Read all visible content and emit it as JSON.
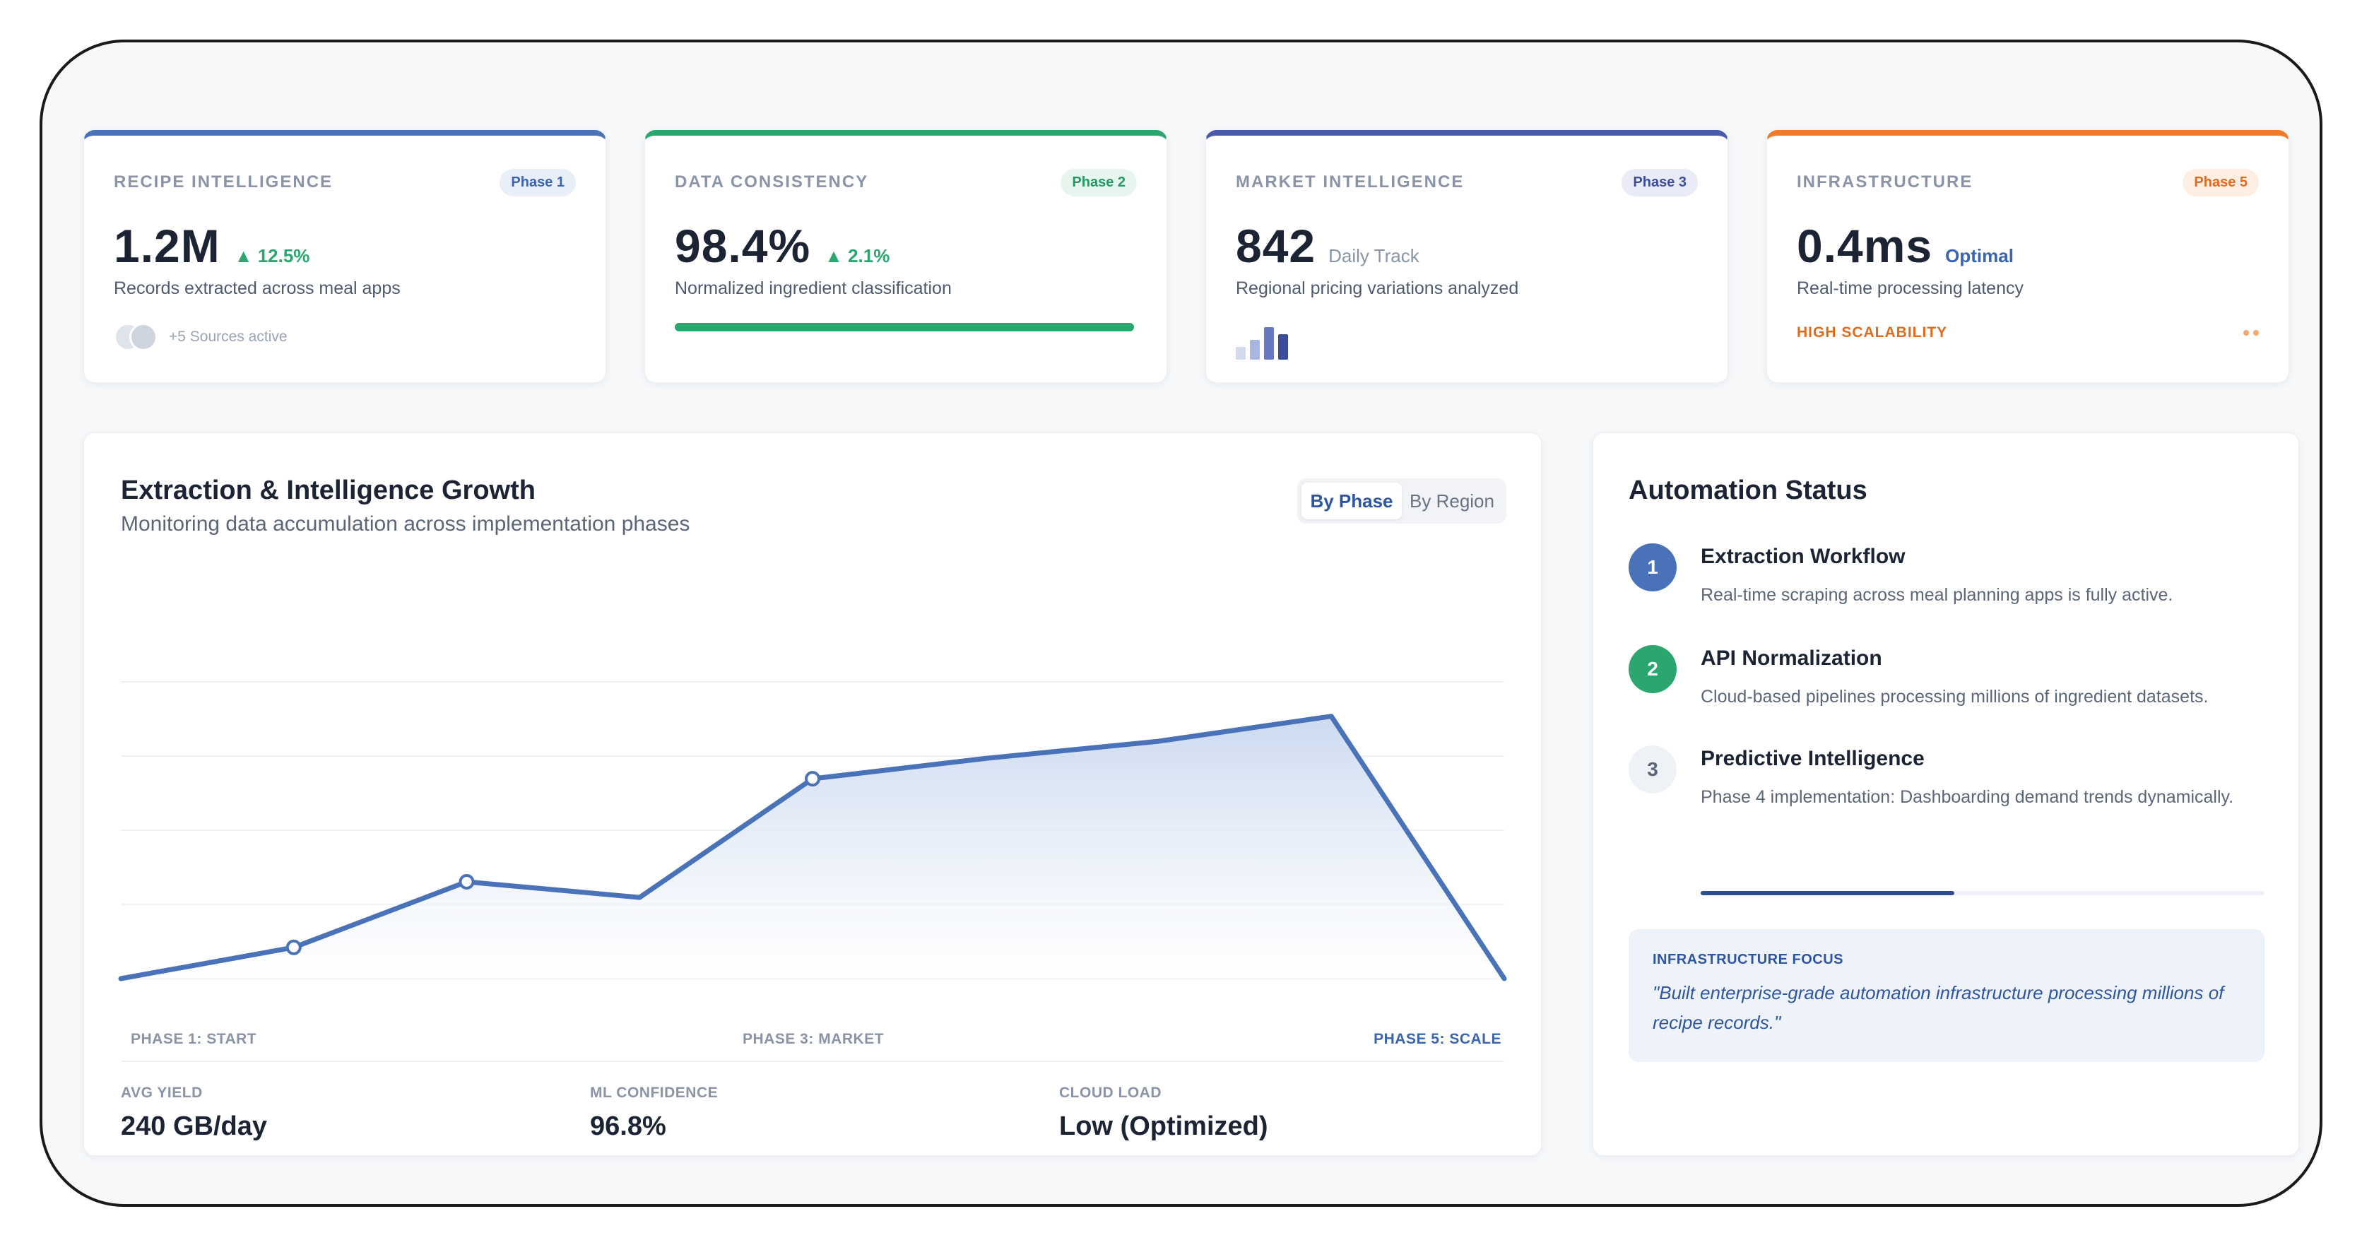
{
  "stats": [
    {
      "label": "RECIPE INTELLIGENCE",
      "phase": "Phase 1",
      "value": "1.2M",
      "delta": "▲ 12.5%",
      "description": "Records extracted across meal apps",
      "sources_text": "+5 Sources active"
    },
    {
      "label": "DATA CONSISTENCY",
      "phase": "Phase 2",
      "value": "98.4%",
      "delta": "▲ 2.1%",
      "description": "Normalized ingredient classification"
    },
    {
      "label": "MARKET INTELLIGENCE",
      "phase": "Phase 3",
      "value": "842",
      "sub": "Daily Track",
      "description": "Regional pricing variations analyzed"
    },
    {
      "label": "INFRASTRUCTURE",
      "phase": "Phase 5",
      "value": "0.4ms",
      "sub": "Optimal",
      "description": "Real-time processing latency",
      "footer": "HIGH SCALABILITY"
    }
  ],
  "chart_panel": {
    "title": "Extraction & Intelligence Growth",
    "subtitle": "Monitoring data accumulation across implementation phases",
    "toggle": [
      "By Phase",
      "By Region"
    ],
    "active_toggle": "By Phase",
    "phase_labels": [
      "PHASE 1: START",
      "PHASE 3: MARKET",
      "PHASE 5: SCALE"
    ],
    "metrics": [
      {
        "label": "AVG YIELD",
        "value": "240 GB/day"
      },
      {
        "label": "ML CONFIDENCE",
        "value": "96.8%"
      },
      {
        "label": "CLOUD LOAD",
        "value": "Low (Optimized)"
      }
    ]
  },
  "chart_data": {
    "type": "area",
    "x": [
      0,
      1,
      2,
      3,
      4,
      5,
      6,
      7,
      8
    ],
    "values": [
      0,
      20,
      62,
      52,
      128,
      141,
      152,
      168,
      0
    ],
    "markers": [
      1,
      2,
      4
    ],
    "ylim": [
      0,
      200
    ],
    "grid": true,
    "xlabel": "",
    "ylabel": "",
    "colors": {
      "line": "#4a72b8",
      "fill_top": "#c9d8ef",
      "fill_bottom": "#ffffff"
    }
  },
  "automation": {
    "title": "Automation Status",
    "steps": [
      {
        "num": "1",
        "title": "Extraction Workflow",
        "desc": "Real-time scraping across meal planning apps is fully active."
      },
      {
        "num": "2",
        "title": "API Normalization",
        "desc": "Cloud-based pipelines processing millions of ingredient datasets."
      },
      {
        "num": "3",
        "title": "Predictive Intelligence",
        "desc": "Phase 4 implementation: Dashboarding demand trends dynamically."
      }
    ],
    "progress": 0.45,
    "focus_label": "INFRASTRUCTURE FOCUS",
    "focus_quote": "\"Built enterprise-grade automation infrastructure processing millions of recipe records.\""
  },
  "colors": {
    "blue": "#4a72b8",
    "green": "#2aa66e",
    "indigo": "#4a5aa8",
    "orange": "#ef7a2c"
  }
}
